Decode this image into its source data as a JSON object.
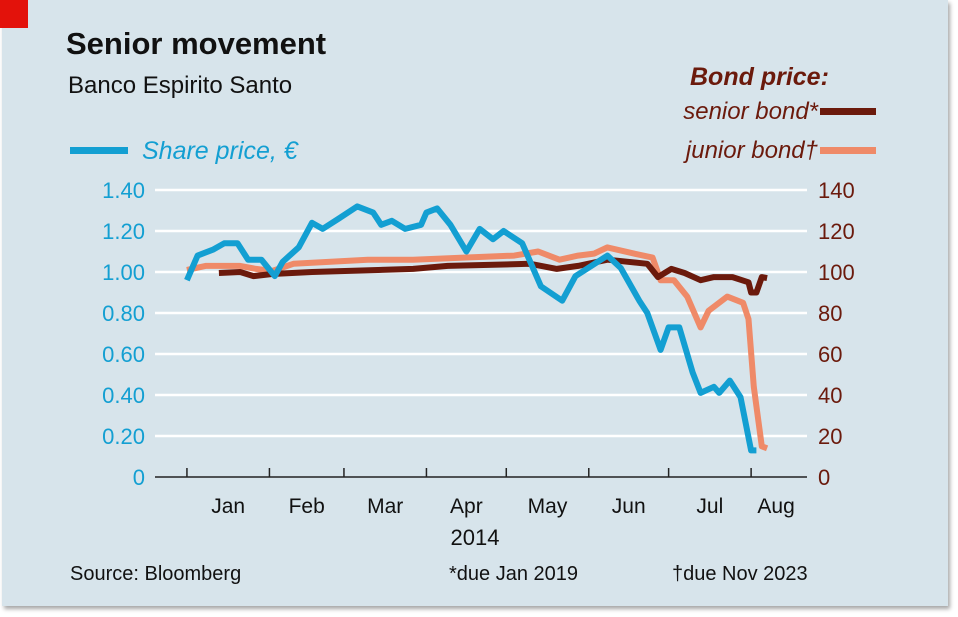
{
  "title": "Senior movement",
  "subtitle": "Banco Espirito Santo",
  "legend": {
    "bond_heading": "Bond price:",
    "senior": "senior bond*",
    "junior": "junior bond†",
    "share": "Share price, €"
  },
  "source": "Source: Bloomberg",
  "footnotes": [
    "*due Jan 2019",
    "†due Nov 2023"
  ],
  "colors": {
    "share": "#139fd2",
    "senior": "#6b1a0c",
    "junior": "#ef8a68",
    "background": "#d7e4eb",
    "accent": "#e3120b"
  },
  "chart_data": {
    "type": "line",
    "title": "Senior movement",
    "subtitle": "Banco Espirito Santo",
    "x_tick_labels": [
      "Jan",
      "Feb",
      "Mar",
      "Apr",
      "May",
      "Jun",
      "Jul",
      "Aug"
    ],
    "x_year_label": "2014",
    "xlim": [
      "2013-12-20",
      "2014-08-22"
    ],
    "left_axis": {
      "label": "Share price, €",
      "ylim": [
        0,
        1.4
      ],
      "ticks": [
        "0",
        "0.20",
        "0.40",
        "0.60",
        "0.80",
        "1.00",
        "1.20",
        "1.40"
      ]
    },
    "right_axis": {
      "label": "Bond price:",
      "ylim": [
        0,
        140
      ],
      "ticks": [
        "0",
        "20",
        "40",
        "60",
        "80",
        "100",
        "120",
        "140"
      ]
    },
    "grid": "horizontal",
    "legend_placement": "top",
    "series": [
      {
        "name": "Share price, €",
        "axis": "left",
        "points": [
          [
            "2014-01-01",
            0.96
          ],
          [
            "2014-01-05",
            1.08
          ],
          [
            "2014-01-11",
            1.11
          ],
          [
            "2014-01-15",
            1.14
          ],
          [
            "2014-01-20",
            1.14
          ],
          [
            "2014-01-24",
            1.06
          ],
          [
            "2014-01-29",
            1.06
          ],
          [
            "2014-02-03",
            0.98
          ],
          [
            "2014-02-06",
            1.05
          ],
          [
            "2014-02-12",
            1.12
          ],
          [
            "2014-02-17",
            1.24
          ],
          [
            "2014-02-21",
            1.21
          ],
          [
            "2014-02-27",
            1.26
          ],
          [
            "2014-03-06",
            1.32
          ],
          [
            "2014-03-12",
            1.29
          ],
          [
            "2014-03-15",
            1.23
          ],
          [
            "2014-03-19",
            1.25
          ],
          [
            "2014-03-24",
            1.21
          ],
          [
            "2014-03-30",
            1.23
          ],
          [
            "2014-04-01",
            1.29
          ],
          [
            "2014-04-05",
            1.31
          ],
          [
            "2014-04-10",
            1.23
          ],
          [
            "2014-04-16",
            1.1
          ],
          [
            "2014-04-21",
            1.21
          ],
          [
            "2014-04-26",
            1.16
          ],
          [
            "2014-04-30",
            1.2
          ],
          [
            "2014-05-07",
            1.14
          ],
          [
            "2014-05-14",
            0.93
          ],
          [
            "2014-05-22",
            0.86
          ],
          [
            "2014-05-27",
            0.98
          ],
          [
            "2014-06-08",
            1.08
          ],
          [
            "2014-06-13",
            1.02
          ],
          [
            "2014-06-20",
            0.86
          ],
          [
            "2014-06-23",
            0.8
          ],
          [
            "2014-06-28",
            0.62
          ],
          [
            "2014-07-01",
            0.73
          ],
          [
            "2014-07-05",
            0.73
          ],
          [
            "2014-07-10",
            0.51
          ],
          [
            "2014-07-13",
            0.41
          ],
          [
            "2014-07-18",
            0.44
          ],
          [
            "2014-07-20",
            0.41
          ],
          [
            "2014-07-24",
            0.47
          ],
          [
            "2014-07-28",
            0.39
          ],
          [
            "2014-08-01",
            0.13
          ],
          [
            "2014-08-03",
            0.13
          ]
        ]
      },
      {
        "name": "senior bond*",
        "axis": "right",
        "points": [
          [
            "2014-01-13",
            99.5
          ],
          [
            "2014-01-21",
            100
          ],
          [
            "2014-01-26",
            98
          ],
          [
            "2014-02-02",
            99
          ],
          [
            "2014-02-17",
            100
          ],
          [
            "2014-03-27",
            101.5
          ],
          [
            "2014-04-09",
            103
          ],
          [
            "2014-05-10",
            104
          ],
          [
            "2014-05-20",
            101.5
          ],
          [
            "2014-05-28",
            103
          ],
          [
            "2014-06-08",
            106
          ],
          [
            "2014-06-23",
            104
          ],
          [
            "2014-06-27",
            97.5
          ],
          [
            "2014-07-02",
            101.5
          ],
          [
            "2014-07-07",
            99.5
          ],
          [
            "2014-07-13",
            96
          ],
          [
            "2014-07-18",
            97.5
          ],
          [
            "2014-07-25",
            97.5
          ],
          [
            "2014-07-31",
            95
          ],
          [
            "2014-08-01",
            90
          ],
          [
            "2014-08-03",
            90
          ],
          [
            "2014-08-05",
            97.5
          ],
          [
            "2014-08-07",
            97
          ]
        ]
      },
      {
        "name": "junior bond†",
        "axis": "right",
        "points": [
          [
            "2014-01-01",
            101
          ],
          [
            "2014-01-08",
            103
          ],
          [
            "2014-01-21",
            103
          ],
          [
            "2014-01-27",
            101.5
          ],
          [
            "2014-02-02",
            100.5
          ],
          [
            "2014-02-10",
            104
          ],
          [
            "2014-03-10",
            106
          ],
          [
            "2014-03-27",
            106
          ],
          [
            "2014-04-15",
            107
          ],
          [
            "2014-05-04",
            108
          ],
          [
            "2014-05-13",
            110
          ],
          [
            "2014-05-21",
            106
          ],
          [
            "2014-05-28",
            108
          ],
          [
            "2014-06-03",
            109
          ],
          [
            "2014-06-08",
            112
          ],
          [
            "2014-06-18",
            109
          ],
          [
            "2014-06-25",
            107
          ],
          [
            "2014-06-28",
            96
          ],
          [
            "2014-07-03",
            96
          ],
          [
            "2014-07-08",
            88
          ],
          [
            "2014-07-13",
            73
          ],
          [
            "2014-07-16",
            81
          ],
          [
            "2014-07-23",
            88
          ],
          [
            "2014-07-29",
            85
          ],
          [
            "2014-07-31",
            77
          ],
          [
            "2014-08-02",
            44
          ],
          [
            "2014-08-05",
            15
          ],
          [
            "2014-08-07",
            14
          ]
        ]
      }
    ]
  }
}
